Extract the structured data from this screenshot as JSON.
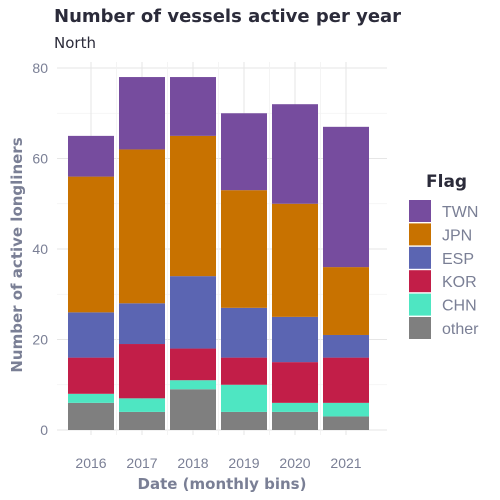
{
  "chart_data": {
    "type": "bar",
    "stacked": true,
    "title": "Number of vessels active per year",
    "subtitle": "North",
    "xlabel": "Date (monthly bins)",
    "ylabel": "Number of active longliners",
    "ylim": [
      0,
      80
    ],
    "yticks": [
      0,
      20,
      40,
      60,
      80
    ],
    "grid": true,
    "legend_title": "Flag",
    "legend_position": "right",
    "categories": [
      "2016",
      "2017",
      "2018",
      "2019",
      "2020",
      "2021"
    ],
    "series": [
      {
        "name": "other",
        "color": "#7f7f7f",
        "values": [
          6,
          4,
          9,
          4,
          4,
          3
        ]
      },
      {
        "name": "CHN",
        "color": "#4ee6c2",
        "values": [
          2,
          3,
          2,
          6,
          2,
          3
        ]
      },
      {
        "name": "KOR",
        "color": "#c21e48",
        "values": [
          8,
          12,
          7,
          6,
          9,
          10
        ]
      },
      {
        "name": "ESP",
        "color": "#5b65b2",
        "values": [
          10,
          9,
          16,
          11,
          10,
          5
        ]
      },
      {
        "name": "JPN",
        "color": "#c87200",
        "values": [
          30,
          34,
          31,
          26,
          25,
          15
        ]
      },
      {
        "name": "TWN",
        "color": "#764c9e",
        "values": [
          9,
          16,
          13,
          17,
          22,
          31
        ]
      }
    ],
    "legend_order": [
      "TWN",
      "JPN",
      "ESP",
      "KOR",
      "CHN",
      "other"
    ]
  }
}
